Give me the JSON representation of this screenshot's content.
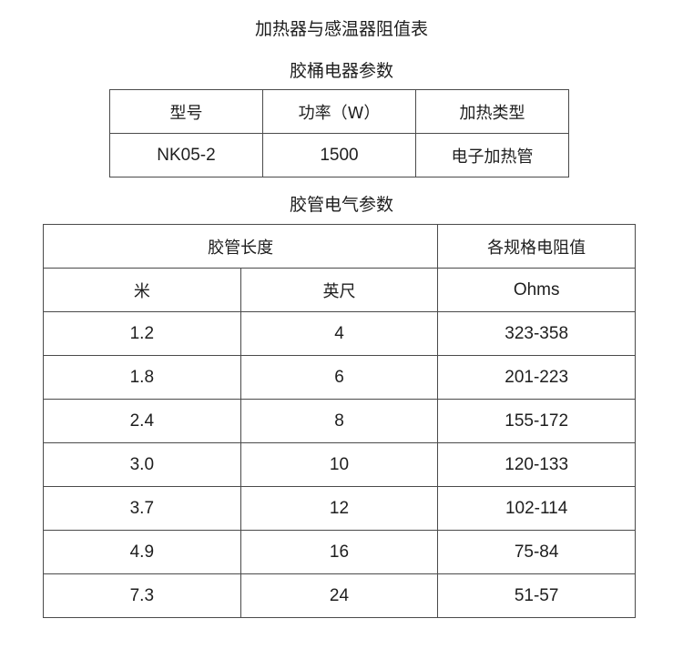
{
  "title": "加热器与感温器阻值表",
  "table1": {
    "caption": "胶桶电器参数",
    "headers": [
      "型号",
      "功率（W）",
      "加热类型"
    ],
    "row": [
      "NK05-2",
      "1500",
      "电子加热管"
    ]
  },
  "table2": {
    "caption": "胶管电气参数",
    "group_header": "胶管长度",
    "resistance_header": "各规格电阻值",
    "subheaders": [
      "米",
      "英尺",
      "Ohms"
    ],
    "rows": [
      [
        "1.2",
        "4",
        "323-358"
      ],
      [
        "1.8",
        "6",
        "201-223"
      ],
      [
        "2.4",
        "8",
        "155-172"
      ],
      [
        "3.0",
        "10",
        "120-133"
      ],
      [
        "3.7",
        "12",
        "102-114"
      ],
      [
        "4.9",
        "16",
        "75-84"
      ],
      [
        "7.3",
        "24",
        "51-57"
      ]
    ]
  }
}
